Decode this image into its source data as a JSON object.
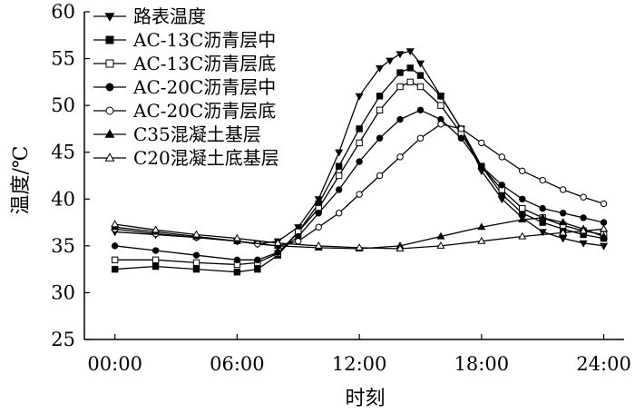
{
  "chart_data": {
    "type": "line",
    "xlabel": "时刻",
    "ylabel": "温度/℃",
    "xlim": [
      -1.5,
      25
    ],
    "ylim": [
      25,
      60
    ],
    "x_ticks": [
      0,
      6,
      12,
      18,
      24
    ],
    "x_tick_labels": [
      "00:00",
      "06:00",
      "12:00",
      "18:00",
      "24:00"
    ],
    "y_ticks": [
      25,
      30,
      35,
      40,
      45,
      50,
      55,
      60
    ],
    "y_tick_labels": [
      "25",
      "30",
      "35",
      "40",
      "45",
      "50",
      "55",
      "60"
    ],
    "legend_position": "top-left",
    "series": [
      {
        "name": "路表温度",
        "marker": "triangle-down",
        "filled": true,
        "x": [
          0,
          2,
          4,
          6,
          7,
          8,
          9,
          10,
          11,
          12,
          13,
          13.5,
          14,
          14.5,
          15,
          16,
          17,
          18,
          19,
          20,
          21,
          22,
          23,
          24
        ],
        "y": [
          36.5,
          36.2,
          35.9,
          35.5,
          35.2,
          35.5,
          37,
          40,
          45,
          51,
          54,
          54.8,
          55.5,
          55.8,
          54.5,
          51,
          47.5,
          43,
          40,
          38,
          36.5,
          35.8,
          35.3,
          35
        ]
      },
      {
        "name": "AC-13C沥青层中",
        "marker": "square",
        "filled": true,
        "x": [
          0,
          2,
          4,
          6,
          7,
          8,
          9,
          10,
          11,
          12,
          13,
          14,
          14.5,
          15,
          16,
          17,
          18,
          19,
          20,
          21,
          22,
          23,
          24
        ],
        "y": [
          32.5,
          32.8,
          32.5,
          32.2,
          32.5,
          34,
          36.5,
          39.5,
          43.5,
          47.5,
          51,
          53.5,
          54,
          53.2,
          51,
          47.5,
          43.5,
          40.5,
          38.5,
          37.5,
          36.8,
          36.2,
          35.8
        ]
      },
      {
        "name": "AC-13C沥青层底",
        "marker": "square",
        "filled": false,
        "x": [
          0,
          2,
          4,
          6,
          7,
          8,
          9,
          10,
          11,
          12,
          13,
          14,
          14.5,
          15,
          16,
          17,
          18,
          19,
          20,
          21,
          22,
          23,
          24
        ],
        "y": [
          33.5,
          33.5,
          33.2,
          33,
          33.2,
          34.2,
          36.5,
          39,
          42.5,
          46,
          49.5,
          52,
          52.5,
          52,
          50,
          47,
          43.5,
          41,
          39,
          38,
          37.2,
          36.6,
          36.2
        ]
      },
      {
        "name": "AC-20C沥青层中",
        "marker": "circle",
        "filled": true,
        "x": [
          0,
          2,
          4,
          6,
          7,
          8,
          9,
          10,
          11,
          12,
          13,
          14,
          15,
          16,
          17,
          18,
          19,
          20,
          21,
          22,
          23,
          24
        ],
        "y": [
          35,
          34.5,
          34,
          33.5,
          33.5,
          34.3,
          36,
          38.5,
          41,
          44,
          46.5,
          48.5,
          49.5,
          48.5,
          46.5,
          43.5,
          41.5,
          40,
          39,
          38.5,
          38,
          37.5
        ]
      },
      {
        "name": "AC-20C沥青层底",
        "marker": "circle",
        "filled": false,
        "x": [
          0,
          2,
          4,
          6,
          7,
          8,
          9,
          10,
          11,
          12,
          13,
          14,
          15,
          16,
          17,
          18,
          19,
          20,
          21,
          22,
          23,
          24
        ],
        "y": [
          36.8,
          36.3,
          35.9,
          35.5,
          35.2,
          35,
          35.5,
          37,
          38.5,
          40.5,
          42.5,
          44.5,
          46.5,
          48,
          47.5,
          46,
          44.5,
          43,
          42,
          41,
          40.2,
          39.5
        ]
      },
      {
        "name": "C35混凝土基层",
        "marker": "triangle-up",
        "filled": true,
        "x": [
          0,
          2,
          4,
          6,
          8,
          10,
          12,
          14,
          16,
          18,
          20,
          21,
          22,
          23,
          24
        ],
        "y": [
          37,
          36.5,
          36,
          35.5,
          35,
          34.8,
          34.7,
          35,
          36,
          37,
          37.8,
          38,
          37.5,
          36.8,
          36
        ]
      },
      {
        "name": "C20混凝土底基层",
        "marker": "triangle-up",
        "filled": false,
        "x": [
          0,
          2,
          4,
          6,
          8,
          10,
          12,
          14,
          16,
          18,
          20,
          22,
          23,
          24
        ],
        "y": [
          37.3,
          36.7,
          36.2,
          35.8,
          35.3,
          35,
          34.8,
          34.7,
          35,
          35.5,
          36,
          36.4,
          36.6,
          36.8
        ]
      }
    ]
  }
}
